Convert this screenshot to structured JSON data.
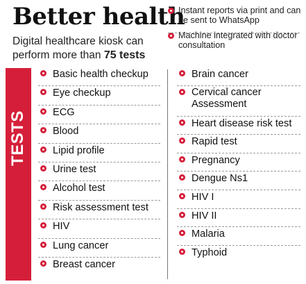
{
  "header": {
    "title": "Better health",
    "subtitle_prefix": "Digital healthcare kiosk can perform more than ",
    "subtitle_strong": "75 tests"
  },
  "notes": [
    "Instant reports via print and can be sent to WhatsApp",
    "Machine integrated with doctor consultation"
  ],
  "tests_label": "TESTS",
  "tests_left": [
    "Basic health checkup",
    "Eye checkup",
    "ECG",
    "Blood",
    "Lipid profile",
    "Urine test",
    "Alcohol test",
    "Risk assessment test",
    "HIV",
    "Lung cancer",
    "Breast cancer"
  ],
  "tests_right": [
    "Brain cancer",
    "Cervical cancer Assessment",
    "Heart disease risk test",
    "Rapid test",
    "Pregnancy",
    "Dengue Ns1",
    "HIV I",
    "HIV II",
    "Malaria",
    "Typhoid"
  ],
  "colors": {
    "accent": "#d51f3a"
  }
}
